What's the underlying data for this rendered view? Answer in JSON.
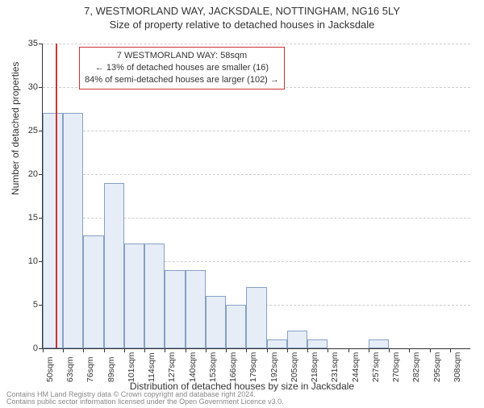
{
  "header": {
    "address": "7, WESTMORLAND WAY, JACKSDALE, NOTTINGHAM, NG16 5LY",
    "subtitle": "Size of property relative to detached houses in Jacksdale"
  },
  "chart": {
    "type": "histogram",
    "ylabel": "Number of detached properties",
    "xlabel": "Distribution of detached houses by size in Jacksdale",
    "ylim": [
      0,
      35
    ],
    "ytick_step": 5,
    "yticks": [
      0,
      5,
      10,
      15,
      20,
      25,
      30,
      35
    ],
    "x_categories": [
      "50sqm",
      "63sqm",
      "76sqm",
      "89sqm",
      "101sqm",
      "114sqm",
      "127sqm",
      "140sqm",
      "153sqm",
      "166sqm",
      "179sqm",
      "192sqm",
      "205sqm",
      "218sqm",
      "231sqm",
      "244sqm",
      "257sqm",
      "270sqm",
      "282sqm",
      "295sqm",
      "308sqm"
    ],
    "values": [
      27,
      27,
      13,
      19,
      12,
      12,
      9,
      9,
      6,
      5,
      7,
      1,
      2,
      1,
      0,
      0,
      1,
      0,
      0,
      0,
      0
    ],
    "bar_fill": "#e6edf7",
    "bar_border": "#87a0c4",
    "grid_color": "#cccccc",
    "axis_color": "#333333",
    "background_color": "#ffffff",
    "marker": {
      "position_index": 0.62,
      "color": "#cc3333"
    },
    "info_box": {
      "line1": "7 WESTMORLAND WAY: 58sqm",
      "line2": "← 13% of detached houses are smaller (16)",
      "line3": "84% of semi-detached houses are larger (102) →",
      "border_color": "#cc3333"
    },
    "label_fontsize": 12,
    "tick_fontsize": 11
  },
  "footer": {
    "line1": "Contains HM Land Registry data © Crown copyright and database right 2024.",
    "line2": "Contains public sector information licensed under the Open Government Licence v3.0."
  }
}
